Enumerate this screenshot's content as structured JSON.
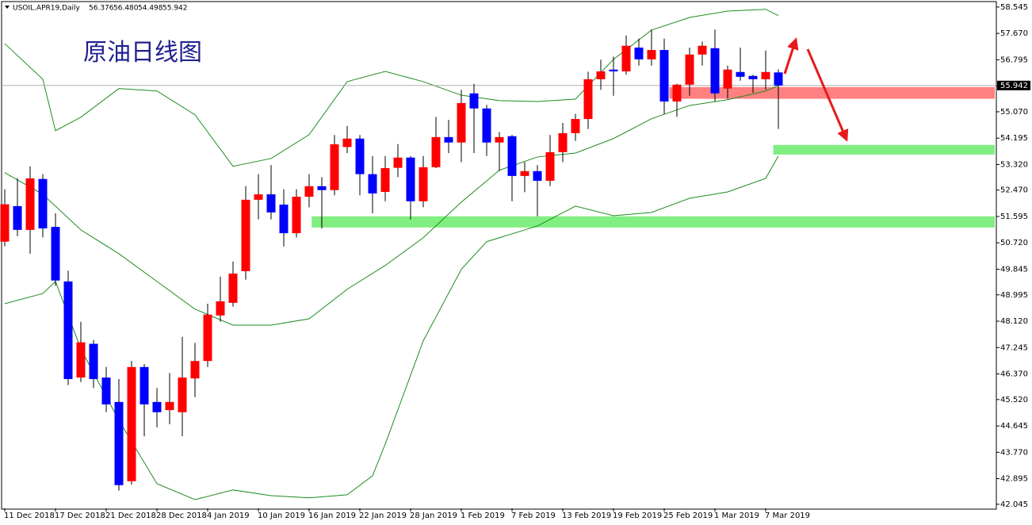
{
  "chart_data": {
    "type": "candlestick",
    "symbol": "USOIL.APR19,Daily",
    "ohlc_labels": {
      "open": "56.376",
      "high": "56.480",
      "low": "54.498",
      "close": "55.942"
    },
    "title": "原油日线图",
    "up_color": "#ff0000",
    "down_color": "#0000ff",
    "wick_color": "#000000",
    "categories": [
      "11 Dec 2018",
      null,
      null,
      null,
      "17 Dec 2018",
      null,
      null,
      null,
      "21 Dec 2018",
      null,
      null,
      null,
      "28 Dec 2018",
      null,
      null,
      null,
      "4 Jan 2019",
      null,
      null,
      null,
      "10 Jan 2019",
      null,
      null,
      null,
      "16 Jan 2019",
      null,
      null,
      null,
      "22 Jan 2019",
      null,
      null,
      null,
      "28 Jan 2019",
      null,
      null,
      null,
      "1 Feb 2019",
      null,
      null,
      null,
      "7 Feb 2019",
      null,
      null,
      null,
      "13 Feb 2019",
      null,
      null,
      null,
      "19 Feb 2019",
      null,
      null,
      null,
      "25 Feb 2019",
      null,
      null,
      null,
      "1 Mar 2019",
      null,
      null,
      null,
      "7 Mar 2019",
      null
    ],
    "open": [
      50.76,
      51.94,
      51.15,
      52.84,
      51.25,
      49.44,
      46.25,
      47.37,
      46.25,
      45.44,
      42.81,
      46.6,
      45.44,
      45.17,
      45.1,
      46.22,
      46.8,
      48.31,
      48.73,
      49.78,
      52.15,
      52.33,
      51.99,
      51.04,
      52.25,
      52.6,
      52.47,
      53.9,
      54.18,
      53.0,
      52.41,
      53.21,
      53.55,
      52.1,
      53.23,
      54.23,
      54.05,
      55.68,
      55.18,
      54.05,
      54.26,
      52.94,
      53.1,
      52.78,
      53.73,
      54.36,
      54.83,
      56.15,
      56.47,
      56.41,
      57.2,
      56.81,
      57.12,
      55.41,
      55.97,
      56.97,
      57.18,
      55.84,
      56.39,
      56.26,
      56.15,
      56.376
    ],
    "high": [
      52.5,
      52.86,
      53.26,
      53.0,
      51.7,
      49.8,
      48.1,
      47.5,
      46.6,
      46.2,
      46.8,
      46.7,
      45.9,
      46.4,
      47.6,
      47.4,
      48.7,
      49.6,
      50.1,
      52.6,
      53.0,
      53.3,
      52.5,
      52.5,
      53.0,
      52.9,
      54.3,
      54.6,
      54.3,
      53.6,
      53.6,
      54.0,
      53.6,
      53.6,
      54.9,
      54.8,
      55.8,
      56.0,
      55.3,
      54.4,
      54.3,
      53.4,
      53.3,
      54.3,
      54.7,
      55.0,
      56.4,
      56.8,
      56.9,
      57.6,
      57.5,
      57.8,
      57.5,
      56.0,
      57.2,
      57.4,
      57.8,
      56.6,
      57.2,
      56.3,
      57.1,
      56.48
    ],
    "low": [
      50.6,
      50.94,
      50.36,
      50.9,
      49.3,
      46.0,
      46.1,
      45.9,
      45.1,
      42.5,
      42.7,
      44.3,
      44.6,
      44.7,
      44.3,
      45.6,
      46.6,
      48.1,
      48.6,
      49.5,
      51.5,
      51.5,
      50.6,
      50.9,
      51.9,
      51.2,
      52.3,
      53.7,
      52.3,
      51.7,
      52.1,
      52.9,
      51.5,
      51.9,
      53.2,
      53.7,
      53.4,
      53.7,
      53.6,
      53.1,
      52.1,
      52.4,
      51.6,
      52.6,
      53.4,
      54.1,
      54.5,
      55.8,
      55.6,
      56.3,
      56.6,
      56.6,
      55.0,
      54.9,
      55.6,
      56.6,
      55.4,
      55.5,
      56.1,
      55.7,
      55.8,
      54.498
    ],
    "close": [
      52.0,
      51.15,
      52.86,
      51.2,
      49.47,
      46.2,
      47.42,
      46.2,
      45.36,
      42.68,
      46.6,
      45.36,
      45.1,
      45.44,
      46.25,
      46.8,
      48.34,
      48.78,
      49.7,
      52.15,
      52.33,
      51.73,
      51.04,
      52.25,
      52.6,
      52.47,
      53.99,
      54.18,
      53.0,
      52.36,
      53.2,
      53.55,
      52.1,
      53.23,
      54.23,
      54.05,
      55.36,
      55.18,
      54.05,
      54.23,
      52.94,
      53.1,
      52.78,
      53.73,
      54.36,
      54.83,
      56.15,
      56.41,
      56.41,
      57.26,
      56.81,
      57.12,
      55.41,
      55.97,
      56.97,
      57.26,
      55.68,
      56.47,
      56.23,
      56.15,
      56.39,
      55.942
    ],
    "bands": [
      {
        "color": "#1e8c1e",
        "x": [
          0,
          3,
          4,
          6,
          9,
          12,
          15,
          18,
          21,
          24,
          27,
          30,
          33,
          36,
          39,
          42,
          45,
          48,
          51,
          54,
          57,
          60,
          61
        ],
        "values": [
          57.33,
          56.15,
          54.44,
          54.89,
          55.84,
          55.76,
          54.97,
          53.26,
          53.52,
          54.31,
          56.07,
          56.41,
          56.07,
          55.62,
          55.44,
          55.41,
          55.49,
          56.81,
          57.78,
          58.2,
          58.41,
          58.47,
          58.26
        ]
      },
      {
        "color": "#1e8c1e",
        "x": [
          0,
          3,
          6,
          9,
          12,
          15,
          18,
          21,
          24,
          27,
          30,
          33,
          36,
          39,
          42,
          45,
          48,
          51,
          54,
          57,
          60,
          61
        ],
        "values": [
          53.05,
          52.33,
          51.15,
          50.36,
          49.44,
          48.52,
          47.99,
          47.99,
          48.2,
          49.18,
          49.97,
          50.89,
          52.07,
          53.13,
          53.57,
          53.7,
          54.18,
          54.84,
          55.28,
          55.47,
          55.76,
          55.94
        ]
      },
      {
        "color": "#1e8c1e",
        "x": [
          0,
          3,
          4,
          6,
          9,
          12,
          15,
          18,
          21,
          24,
          27,
          29,
          30,
          33,
          36,
          38,
          42,
          45,
          48,
          51,
          54,
          57,
          60,
          61
        ],
        "values": [
          48.7,
          49.04,
          49.44,
          47.2,
          44.83,
          42.73,
          42.2,
          42.52,
          42.33,
          42.26,
          42.36,
          42.99,
          44.04,
          47.47,
          49.84,
          50.76,
          51.28,
          51.94,
          51.62,
          51.73,
          52.2,
          52.41,
          52.86,
          53.6
        ]
      }
    ],
    "zones": [
      {
        "from": 55.5,
        "to": 55.89,
        "x_start": 52.4,
        "color": "#ff8080"
      },
      {
        "from": 53.65,
        "to": 53.97,
        "x_start": 60.6,
        "color": "#80ee80"
      },
      {
        "from": 51.23,
        "to": 51.6,
        "x_start": 24.2,
        "color": "#80ee80"
      }
    ],
    "ylim": [
      41.91,
      58.7
    ],
    "yticks": [
      58.545,
      {
        "value": 57.67,
        "label": "57.670"
      },
      56.795,
      {
        "value": 55.92,
        "label": "55.920"
      },
      {
        "value": 55.07,
        "label": "55.070"
      },
      54.195,
      {
        "value": 53.32,
        "label": "53.320"
      },
      {
        "value": 52.47,
        "label": "52.470"
      },
      51.595,
      {
        "value": 50.72,
        "label": "50.720"
      },
      49.845,
      48.995,
      {
        "value": 48.12,
        "label": "48.120"
      },
      47.245,
      {
        "value": 46.37,
        "label": "46.370"
      },
      {
        "value": 45.52,
        "label": "45.520"
      },
      44.645,
      {
        "value": 43.77,
        "label": "43.770"
      },
      42.895,
      42.045
    ]
  }
}
